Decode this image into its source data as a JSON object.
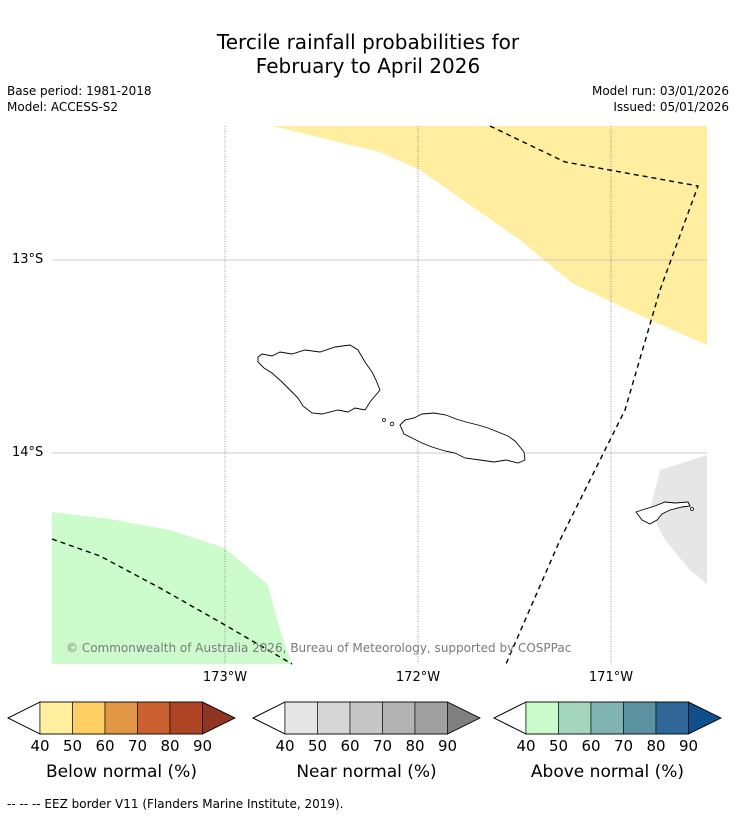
{
  "title_line1": "Tercile rainfall probabilities for",
  "title_line2": "February to April 2026",
  "base_period": "Base period: 1981-2018",
  "model": "Model: ACCESS-S2",
  "model_run": "Model run: 03/01/2026",
  "issued": "Issued: 05/01/2026",
  "lat_labels": [
    "13°S",
    "14°S"
  ],
  "lon_labels": [
    "173°W",
    "172°W",
    "171°W"
  ],
  "copyright": "© Commonwealth of Australia 2026, Bureau of Meteorology, supported by COSPPac",
  "colorbars": [
    {
      "label": "Below normal (%)",
      "ticks": [
        "40",
        "50",
        "60",
        "70",
        "80",
        "90"
      ],
      "colors": [
        "#fff0a0",
        "#fecf65",
        "#e19645",
        "#cb6030",
        "#b04525",
        "#8e3420"
      ]
    },
    {
      "label": "Near normal (%)",
      "ticks": [
        "40",
        "50",
        "60",
        "70",
        "80",
        "90"
      ],
      "colors": [
        "#e6e6e6",
        "#d6d6d6",
        "#c6c6c6",
        "#b3b3b3",
        "#a0a0a0",
        "#808080"
      ]
    },
    {
      "label": "Above normal (%)",
      "ticks": [
        "40",
        "50",
        "60",
        "70",
        "80",
        "90"
      ],
      "colors": [
        "#cafccb",
        "#a4d6bb",
        "#7fb4b2",
        "#5a92a2",
        "#306798",
        "#104e8c"
      ]
    }
  ],
  "footer": "--  --  -- EEZ border V11 (Flanders Marine Institute, 2019).",
  "colors": {
    "below_normal_fill": "#ffeda0",
    "above_normal_fill": "#ccfccb",
    "near_normal_fill": "#e6e6e6"
  }
}
